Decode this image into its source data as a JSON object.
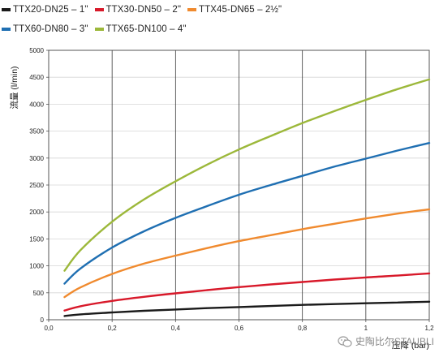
{
  "legend": [
    {
      "label": "TTX20-DN25 – 1\"",
      "color": "#1a1a1a"
    },
    {
      "label": "TTX30-DN50 – 2\"",
      "color": "#d8192a"
    },
    {
      "label": "TTX45-DN65 – 2½\"",
      "color": "#f08a2e"
    },
    {
      "label": "TTX60-DN80 – 3\"",
      "color": "#1f6fb2"
    },
    {
      "label": "TTX65-DN100 – 4\"",
      "color": "#9cb83a"
    }
  ],
  "watermark": {
    "text": "史陶比尔STAUBLI",
    "icon": "wechat-icon"
  },
  "chart_data": {
    "type": "line",
    "xlabel": "压降 (bar)",
    "ylabel": "流量 (l/min)",
    "xlim": [
      0,
      1.2
    ],
    "ylim": [
      0,
      5000
    ],
    "grid": true,
    "legend_position": "top",
    "x_ticks": [
      "0,0",
      "0,2",
      "0,4",
      "0,6",
      "0,8",
      "1",
      "1,2"
    ],
    "y_ticks": [
      "0",
      "500",
      "1000",
      "1500",
      "2000",
      "2500",
      "3000",
      "3500",
      "4000",
      "4500",
      "5000"
    ],
    "series": [
      {
        "name": "TTX20-DN25 – 1\"",
        "color": "#1a1a1a",
        "x": [
          0.05,
          0.1,
          0.2,
          0.3,
          0.4,
          0.5,
          0.6,
          0.7,
          0.8,
          0.9,
          1.0,
          1.1,
          1.2
        ],
        "y": [
          70,
          100,
          135,
          165,
          190,
          215,
          235,
          255,
          275,
          290,
          305,
          320,
          335
        ]
      },
      {
        "name": "TTX30-DN50 – 2\"",
        "color": "#d8192a",
        "x": [
          0.05,
          0.1,
          0.2,
          0.3,
          0.4,
          0.5,
          0.6,
          0.7,
          0.8,
          0.9,
          1.0,
          1.1,
          1.2
        ],
        "y": [
          170,
          250,
          350,
          425,
          490,
          550,
          605,
          655,
          700,
          745,
          785,
          820,
          860
        ]
      },
      {
        "name": "TTX45-DN65 – 2½\"",
        "color": "#f08a2e",
        "x": [
          0.05,
          0.1,
          0.2,
          0.3,
          0.4,
          0.5,
          0.6,
          0.7,
          0.8,
          0.9,
          1.0,
          1.1,
          1.2
        ],
        "y": [
          420,
          600,
          850,
          1040,
          1190,
          1330,
          1460,
          1570,
          1680,
          1780,
          1880,
          1970,
          2050
        ]
      },
      {
        "name": "TTX60-DN80 – 3\"",
        "color": "#1f6fb2",
        "x": [
          0.05,
          0.1,
          0.2,
          0.3,
          0.4,
          0.5,
          0.6,
          0.7,
          0.8,
          0.9,
          1.0,
          1.1,
          1.2
        ],
        "y": [
          670,
          950,
          1340,
          1640,
          1890,
          2110,
          2320,
          2500,
          2670,
          2840,
          2990,
          3140,
          3280
        ]
      },
      {
        "name": "TTX65-DN100 – 4\"",
        "color": "#9cb83a",
        "x": [
          0.05,
          0.1,
          0.2,
          0.3,
          0.4,
          0.5,
          0.6,
          0.7,
          0.8,
          0.9,
          1.0,
          1.1,
          1.2
        ],
        "y": [
          910,
          1290,
          1820,
          2230,
          2570,
          2880,
          3160,
          3410,
          3650,
          3870,
          4080,
          4280,
          4460
        ]
      }
    ]
  }
}
